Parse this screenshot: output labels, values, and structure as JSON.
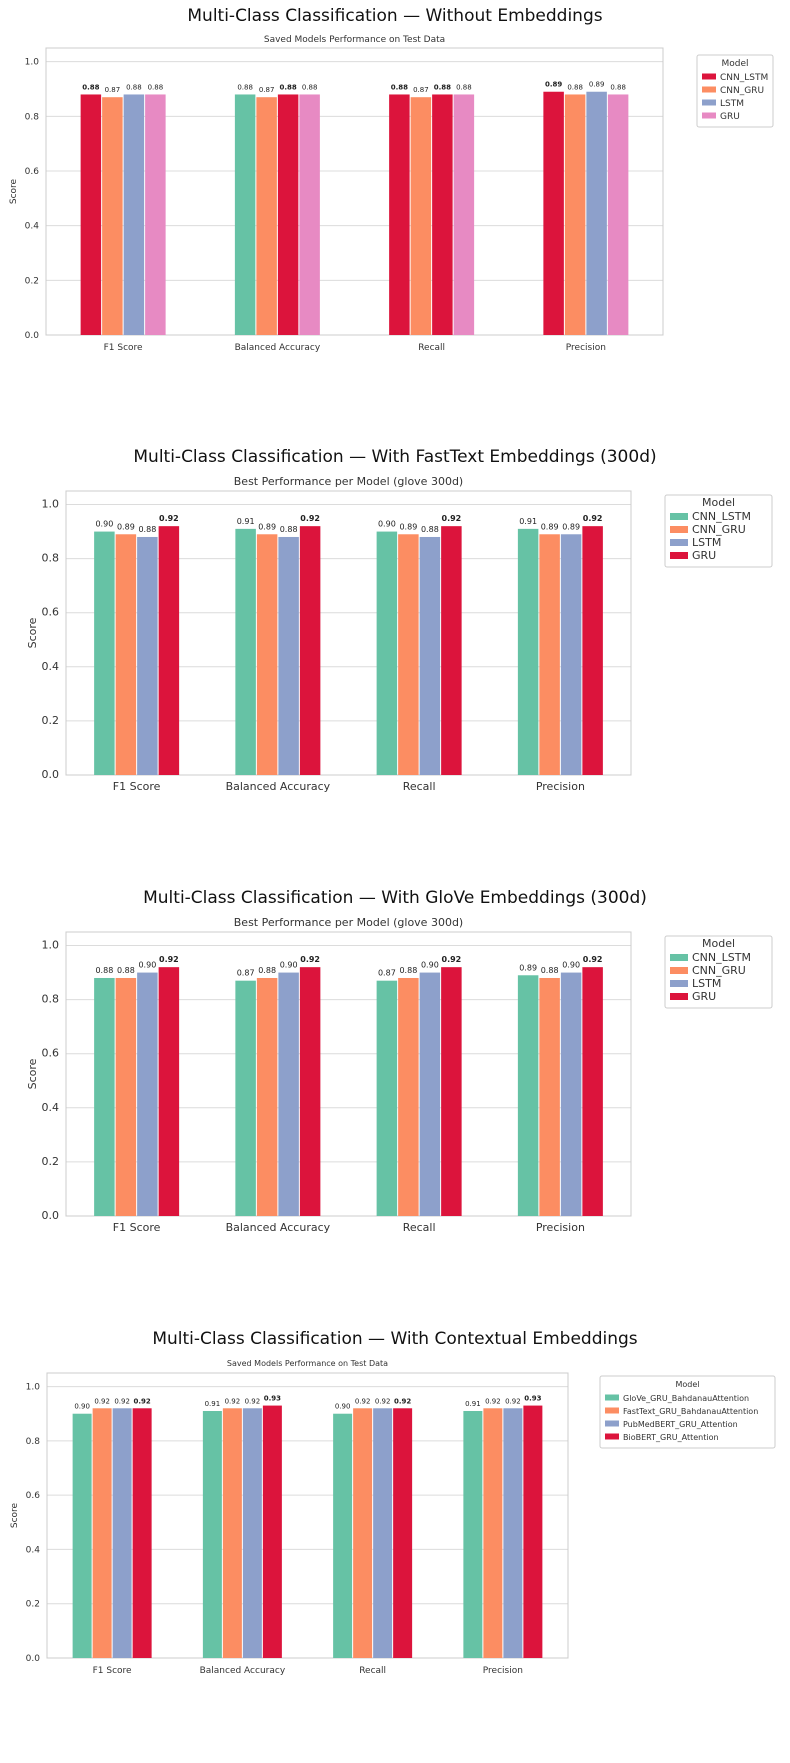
{
  "colors": {
    "green": "#66c2a5",
    "orange": "#fc8d62",
    "blue": "#8da0cb",
    "pink": "#e78ac3",
    "crimson": "#dc143c"
  },
  "categories": [
    "F1 Score",
    "Balanced Accuracy",
    "Recall",
    "Precision"
  ],
  "ylabel": "Score",
  "legend_title": "Model",
  "chart_data": [
    {
      "type": "bar",
      "panel_title": "Multi-Class Classification — Without Embeddings",
      "subtitle": "Saved Models Performance on Test Data",
      "ylabel": "Score",
      "ylim": [
        0,
        1.05
      ],
      "yticks": [
        "0.0",
        "0.2",
        "0.4",
        "0.6",
        "0.8",
        "1.0"
      ],
      "categories": [
        "F1 Score",
        "Balanced Accuracy",
        "Recall",
        "Precision"
      ],
      "legend_title": "Model",
      "legend_placement": "outside-right",
      "grid": true,
      "series": [
        {
          "name": "CNN_LSTM",
          "color": "#dc143c",
          "values": [
            0.88,
            0.88,
            0.88,
            0.89
          ],
          "labels": [
            "0.88",
            "0.88",
            "0.88",
            "0.89"
          ],
          "bar_colors": [
            "#dc143c",
            "#66c2a5",
            "#dc143c",
            "#dc143c"
          ],
          "bold": [
            true,
            false,
            true,
            true
          ]
        },
        {
          "name": "CNN_GRU",
          "color": "#fc8d62",
          "values": [
            0.87,
            0.87,
            0.87,
            0.88
          ],
          "labels": [
            "0.87",
            "0.87",
            "0.87",
            "0.88"
          ],
          "bold": [
            false,
            false,
            false,
            false
          ]
        },
        {
          "name": "LSTM",
          "color": "#8da0cb",
          "values": [
            0.88,
            0.88,
            0.88,
            0.89
          ],
          "labels": [
            "0.88",
            "0.88",
            "0.88",
            "0.89"
          ],
          "bar_colors": [
            "#8da0cb",
            "#dc143c",
            "#dc143c",
            "#8da0cb"
          ],
          "bold": [
            false,
            true,
            true,
            false
          ]
        },
        {
          "name": "GRU",
          "color": "#e78ac3",
          "values": [
            0.88,
            0.88,
            0.88,
            0.88
          ],
          "labels": [
            "0.88",
            "0.88",
            "0.88",
            "0.88"
          ],
          "bold": [
            false,
            false,
            false,
            false
          ]
        }
      ]
    },
    {
      "type": "bar",
      "panel_title": "Multi-Class Classification — With FastText Embeddings (300d)",
      "subtitle": "Best Performance per Model (glove 300d)",
      "ylabel": "Score",
      "ylim": [
        0,
        1.05
      ],
      "yticks": [
        "0.0",
        "0.2",
        "0.4",
        "0.6",
        "0.8",
        "1.0"
      ],
      "categories": [
        "F1 Score",
        "Balanced Accuracy",
        "Recall",
        "Precision"
      ],
      "legend_title": "Model",
      "legend_placement": "outside-right",
      "grid": true,
      "series": [
        {
          "name": "CNN_LSTM",
          "color": "#66c2a5",
          "values": [
            0.9,
            0.91,
            0.9,
            0.91
          ],
          "labels": [
            "0.90",
            "0.91",
            "0.90",
            "0.91"
          ],
          "bold": [
            false,
            false,
            false,
            false
          ]
        },
        {
          "name": "CNN_GRU",
          "color": "#fc8d62",
          "values": [
            0.89,
            0.89,
            0.89,
            0.89
          ],
          "labels": [
            "0.89",
            "0.89",
            "0.89",
            "0.89"
          ],
          "bold": [
            false,
            false,
            false,
            false
          ]
        },
        {
          "name": "LSTM",
          "color": "#8da0cb",
          "values": [
            0.88,
            0.88,
            0.88,
            0.89
          ],
          "labels": [
            "0.88",
            "0.88",
            "0.88",
            "0.89"
          ],
          "bold": [
            false,
            false,
            false,
            false
          ]
        },
        {
          "name": "GRU",
          "color": "#dc143c",
          "values": [
            0.92,
            0.92,
            0.92,
            0.92
          ],
          "labels": [
            "0.92",
            "0.92",
            "0.92",
            "0.92"
          ],
          "bold": [
            true,
            true,
            true,
            true
          ]
        }
      ]
    },
    {
      "type": "bar",
      "panel_title": "Multi-Class Classification — With GloVe Embeddings (300d)",
      "subtitle": "Best Performance per Model (glove 300d)",
      "ylabel": "Score",
      "ylim": [
        0,
        1.05
      ],
      "yticks": [
        "0.0",
        "0.2",
        "0.4",
        "0.6",
        "0.8",
        "1.0"
      ],
      "categories": [
        "F1 Score",
        "Balanced Accuracy",
        "Recall",
        "Precision"
      ],
      "legend_title": "Model",
      "legend_placement": "outside-right",
      "grid": true,
      "series": [
        {
          "name": "CNN_LSTM",
          "color": "#66c2a5",
          "values": [
            0.88,
            0.87,
            0.87,
            0.89
          ],
          "labels": [
            "0.88",
            "0.87",
            "0.87",
            "0.89"
          ],
          "bold": [
            false,
            false,
            false,
            false
          ]
        },
        {
          "name": "CNN_GRU",
          "color": "#fc8d62",
          "values": [
            0.88,
            0.88,
            0.88,
            0.88
          ],
          "labels": [
            "0.88",
            "0.88",
            "0.88",
            "0.88"
          ],
          "bold": [
            false,
            false,
            false,
            false
          ]
        },
        {
          "name": "LSTM",
          "color": "#8da0cb",
          "values": [
            0.9,
            0.9,
            0.9,
            0.9
          ],
          "labels": [
            "0.90",
            "0.90",
            "0.90",
            "0.90"
          ],
          "bold": [
            false,
            false,
            false,
            false
          ]
        },
        {
          "name": "GRU",
          "color": "#dc143c",
          "values": [
            0.92,
            0.92,
            0.92,
            0.92
          ],
          "labels": [
            "0.92",
            "0.92",
            "0.92",
            "0.92"
          ],
          "bold": [
            true,
            true,
            true,
            true
          ]
        }
      ]
    },
    {
      "type": "bar",
      "panel_title": "Multi-Class Classification — With Contextual Embeddings",
      "subtitle": "Saved Models Performance on Test Data",
      "ylabel": "Score",
      "ylim": [
        0,
        1.05
      ],
      "yticks": [
        "0.0",
        "0.2",
        "0.4",
        "0.6",
        "0.8",
        "1.0"
      ],
      "categories": [
        "F1 Score",
        "Balanced Accuracy",
        "Recall",
        "Precision"
      ],
      "legend_title": "Model",
      "legend_placement": "outside-right",
      "grid": true,
      "series": [
        {
          "name": "GloVe_GRU_BahdanauAttention",
          "color": "#66c2a5",
          "values": [
            0.9,
            0.91,
            0.9,
            0.91
          ],
          "labels": [
            "0.90",
            "0.91",
            "0.90",
            "0.91"
          ],
          "bold": [
            false,
            false,
            false,
            false
          ]
        },
        {
          "name": "FastText_GRU_BahdanauAttention",
          "color": "#fc8d62",
          "values": [
            0.92,
            0.92,
            0.92,
            0.92
          ],
          "labels": [
            "0.92",
            "0.92",
            "0.92",
            "0.92"
          ],
          "bold": [
            false,
            false,
            false,
            false
          ]
        },
        {
          "name": "PubMedBERT_GRU_Attention",
          "color": "#8da0cb",
          "values": [
            0.92,
            0.92,
            0.92,
            0.92
          ],
          "labels": [
            "0.92",
            "0.92",
            "0.92",
            "0.92"
          ],
          "bold": [
            false,
            false,
            false,
            false
          ]
        },
        {
          "name": "BioBERT_GRU_Attention",
          "color": "#dc143c",
          "values": [
            0.92,
            0.93,
            0.92,
            0.93
          ],
          "labels": [
            "0.92",
            "0.93",
            "0.92",
            "0.93"
          ],
          "bold": [
            true,
            true,
            true,
            true
          ]
        }
      ]
    }
  ]
}
